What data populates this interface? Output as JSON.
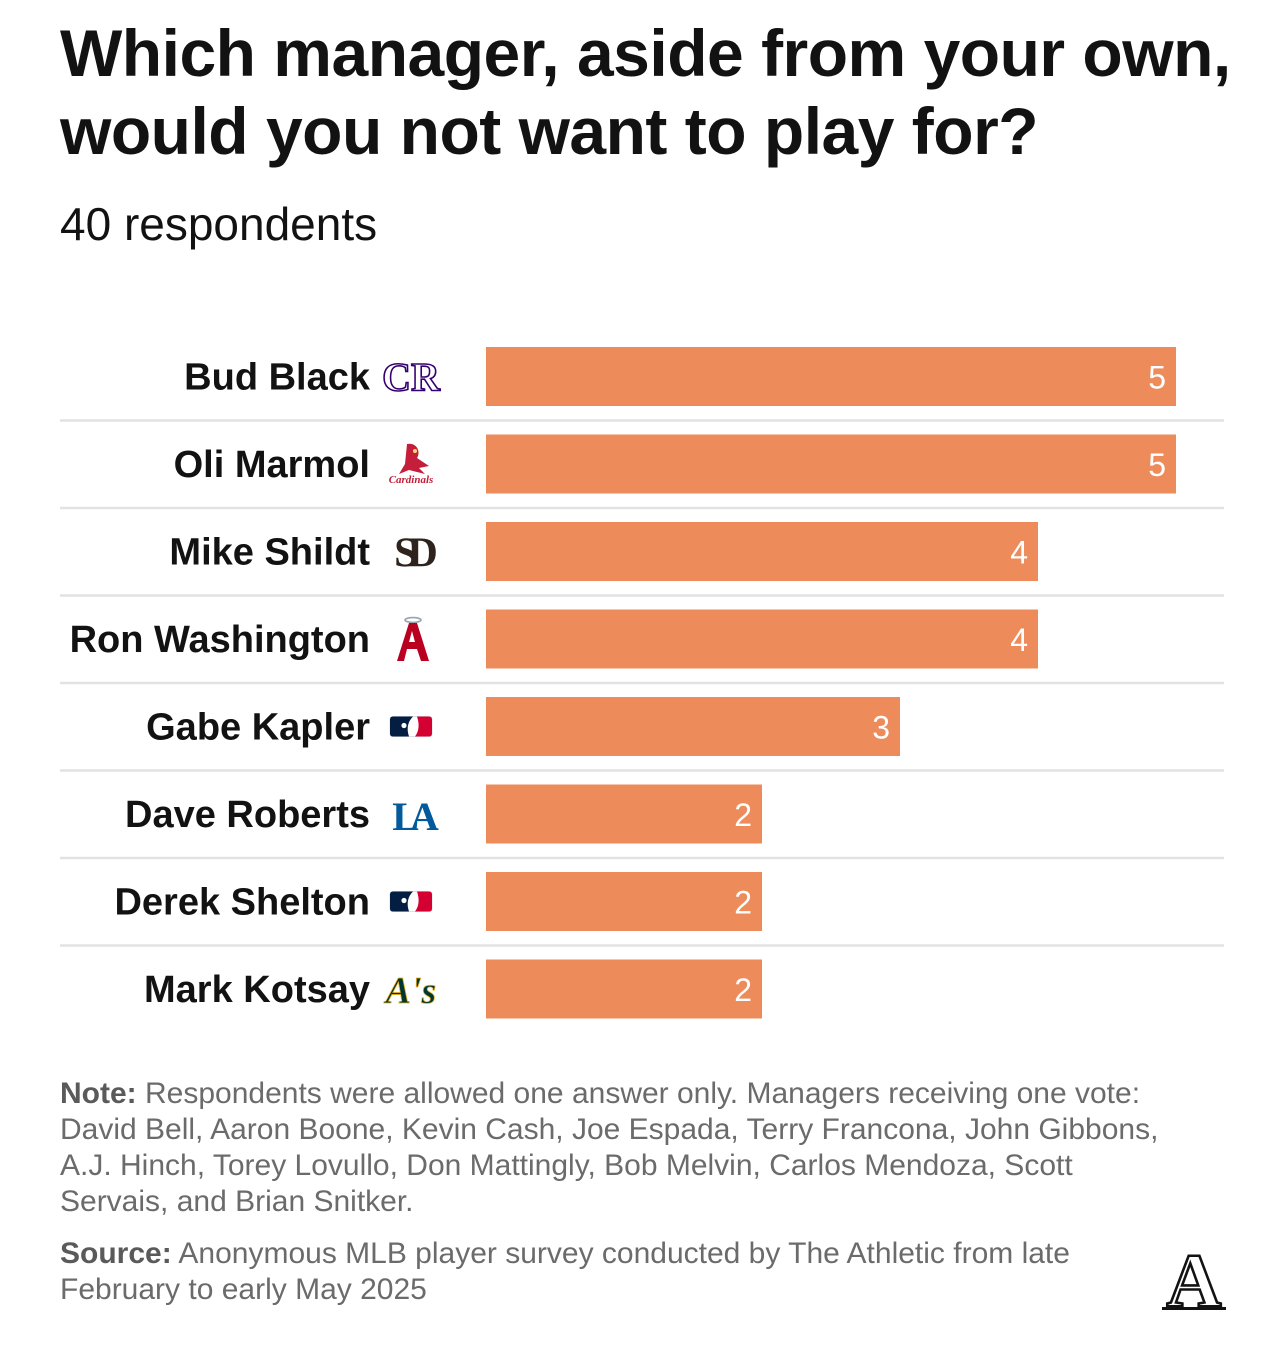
{
  "title": "Which manager, aside from your own, would you not want to play for?",
  "subtitle": "40 respondents",
  "colors": {
    "bar": "#EE8B5B",
    "divider": "#E2E2E2",
    "text": "#121212",
    "note": "#6B6B6B"
  },
  "chart_data": {
    "type": "bar",
    "orientation": "horizontal",
    "title": "Which manager, aside from your own, would you not want to play for?",
    "subtitle": "40 respondents",
    "categories": [
      "Bud Black",
      "Oli Marmol",
      "Mike Shildt",
      "Ron Washington",
      "Gabe Kapler",
      "Dave Roberts",
      "Derek Shelton",
      "Mark Kotsay"
    ],
    "values": [
      5,
      5,
      4,
      4,
      3,
      2,
      2,
      2
    ],
    "team_logos": [
      "rockies-logo",
      "cardinals-logo",
      "padres-logo",
      "angels-logo",
      "mlb-logo",
      "dodgers-logo",
      "mlb-logo",
      "athletics-logo"
    ],
    "xlim": [
      0,
      5
    ],
    "grid": false,
    "legend": "none"
  },
  "logo_text": {
    "rockies": "CR",
    "cardinals": "Cardinals",
    "padres": "SD",
    "angels": "A",
    "dodgers": "LA",
    "athletics": "A's"
  },
  "note": {
    "label": "Note:",
    "text": "Respondents were allowed one answer only. Managers receiving one vote: David Bell, Aaron Boone, Kevin Cash, Joe Espada, Terry Francona, John Gibbons, A.J. Hinch, Torey Lovullo, Don Mattingly, Bob Melvin, Carlos Mendoza, Scott Servais, and Brian Snitker."
  },
  "source": {
    "label": "Source:",
    "text": "Anonymous MLB player survey conducted by The Athletic from late February to early May 2025"
  },
  "brand": {
    "name": "The Athletic logo",
    "letter": "A"
  }
}
